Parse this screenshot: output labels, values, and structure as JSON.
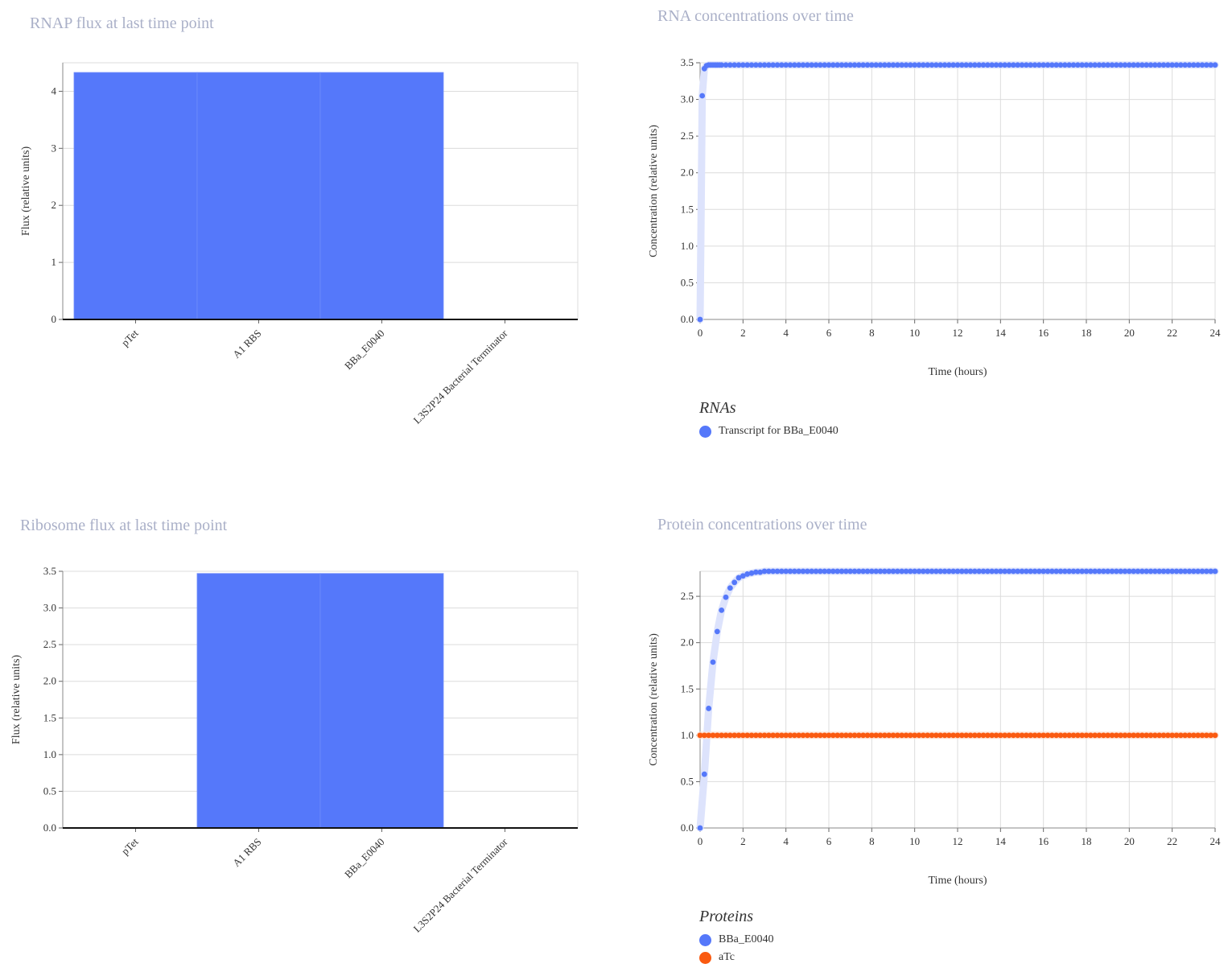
{
  "colors": {
    "blue": "#5578fa",
    "orange": "#fa5a10",
    "band_blue": "#dde3fc",
    "band_orange": "#fde0d2",
    "grid": "#dcdcdc"
  },
  "panels": {
    "rnap": {
      "title": "RNAP flux at last time point"
    },
    "rna": {
      "title": "RNA concentrations over time",
      "legend_title": "RNAs"
    },
    "ribosome": {
      "title": "Ribosome flux at last time point"
    },
    "protein": {
      "title": "Protein concentrations over time",
      "legend_title": "Proteins"
    }
  },
  "chart_data": [
    {
      "id": "rnap",
      "type": "bar",
      "title": "RNAP flux at last time point",
      "categories": [
        "pTet",
        "A1 RBS",
        "BBa_E0040",
        "L3S2P24 Bacterial Terminator"
      ],
      "values": [
        4.33,
        4.33,
        4.33,
        0
      ],
      "ylabel": "Flux (relative units)",
      "ylim": [
        0,
        4.5
      ],
      "yticks": [
        0,
        1,
        2,
        3,
        4
      ],
      "grid": true
    },
    {
      "id": "rna",
      "type": "scatter",
      "title": "RNA concentrations over time",
      "xlabel": "Time (hours)",
      "ylabel": "Concentration (relative units)",
      "xlim": [
        0,
        24
      ],
      "ylim": [
        0,
        3.5
      ],
      "xticks": [
        0,
        2,
        4,
        6,
        8,
        10,
        12,
        14,
        16,
        18,
        20,
        22,
        24
      ],
      "yticks": [
        0,
        0.5,
        1,
        1.5,
        2,
        2.5,
        3,
        3.5
      ],
      "grid": true,
      "legend_title": "RNAs",
      "series": [
        {
          "name": "Transcript for BBa_E0040",
          "color": "#5578fa",
          "x": [
            0,
            0.1,
            0.2,
            0.3,
            0.4,
            0.5,
            0.6,
            0.7,
            0.8,
            0.9,
            1.0
          ],
          "y": [
            0,
            3.05,
            3.42,
            3.46,
            3.47,
            3.47,
            3.47,
            3.47,
            3.47,
            3.47,
            3.47
          ],
          "steady_value": 3.47,
          "steady_from": 1.0,
          "steady_step": 0.2
        }
      ]
    },
    {
      "id": "ribosome",
      "type": "bar",
      "title": "Ribosome flux at last time point",
      "categories": [
        "pTet",
        "A1 RBS",
        "BBa_E0040",
        "L3S2P24 Bacterial Terminator"
      ],
      "values": [
        0,
        3.47,
        3.47,
        0
      ],
      "ylabel": "Flux (relative units)",
      "ylim": [
        0,
        3.5
      ],
      "yticks": [
        0,
        0.5,
        1,
        1.5,
        2,
        2.5,
        3,
        3.5
      ],
      "grid": true
    },
    {
      "id": "protein",
      "type": "scatter",
      "title": "Protein concentrations over time",
      "xlabel": "Time (hours)",
      "ylabel": "Concentration (relative units)",
      "xlim": [
        0,
        24
      ],
      "ylim": [
        0,
        2.77
      ],
      "xticks": [
        0,
        2,
        4,
        6,
        8,
        10,
        12,
        14,
        16,
        18,
        20,
        22,
        24
      ],
      "yticks": [
        0,
        0.5,
        1,
        1.5,
        2,
        2.5
      ],
      "grid": true,
      "legend_title": "Proteins",
      "series": [
        {
          "name": "BBa_E0040",
          "color": "#5578fa",
          "x": [
            0,
            0.2,
            0.4,
            0.6,
            0.8,
            1.0,
            1.2,
            1.4,
            1.6,
            1.8,
            2.0,
            2.2,
            2.4,
            2.6,
            2.8,
            3.0
          ],
          "y": [
            0,
            0.58,
            1.29,
            1.79,
            2.12,
            2.35,
            2.49,
            2.59,
            2.65,
            2.7,
            2.72,
            2.74,
            2.75,
            2.76,
            2.76,
            2.77
          ],
          "steady_value": 2.77,
          "steady_from": 3.0,
          "steady_step": 0.2
        },
        {
          "name": "aTc",
          "color": "#fa5a10",
          "x": [
            0
          ],
          "y": [
            1.0
          ],
          "steady_value": 1.0,
          "steady_from": 0,
          "steady_step": 0.2
        }
      ]
    }
  ]
}
